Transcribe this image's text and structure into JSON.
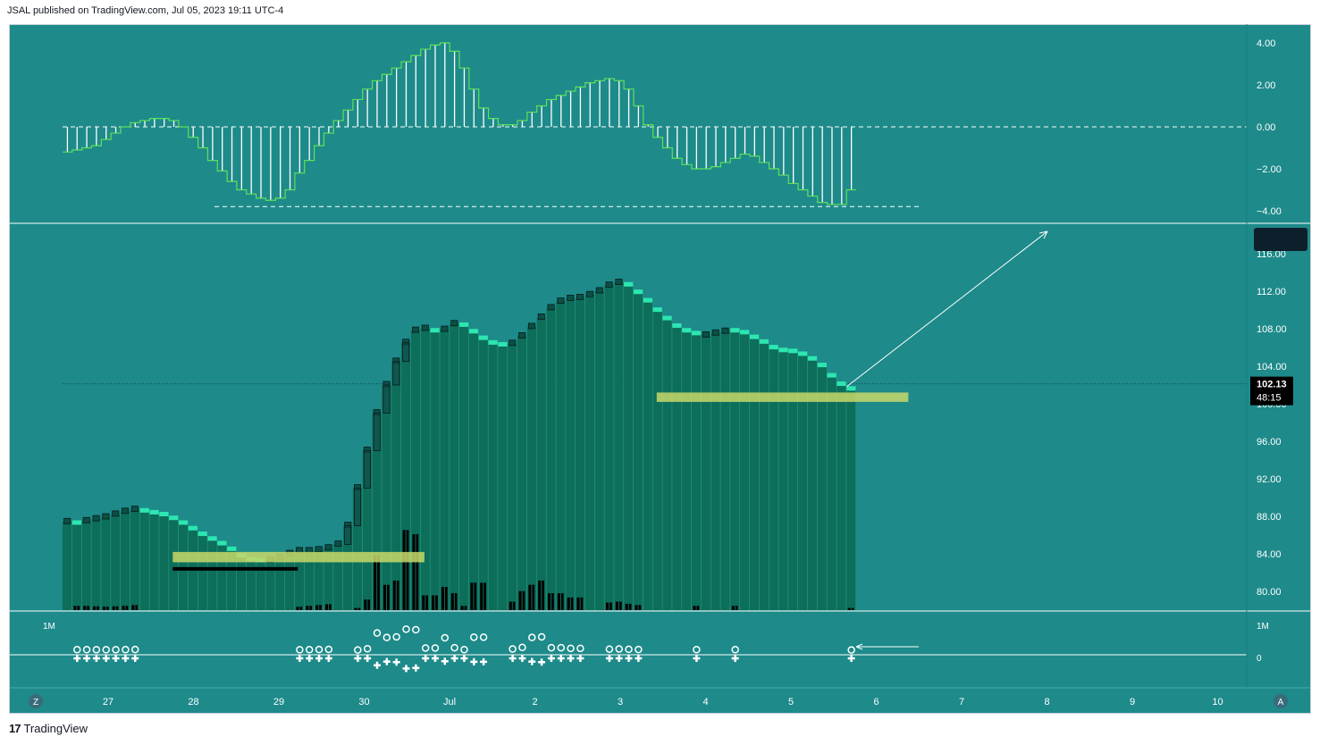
{
  "header": {
    "published_text": "JSAL published on TradingView.com, Jul 05, 2023 19:11 UTC-4"
  },
  "footer": {
    "logo_glyph": "17",
    "brand": "TradingView"
  },
  "colors": {
    "background": "#1e8a8a",
    "bar": "#0d6e5a",
    "highlight": "#2de6b0",
    "zone": "#c8d86a",
    "text": "#ffffff"
  },
  "price_badge": {
    "price": "102.13",
    "countdown": "48:15"
  },
  "volume_scale": {
    "top_label": "1M",
    "zero_label": "0"
  },
  "corner_buttons": {
    "left": "Z",
    "right": "A"
  },
  "chart_data": [
    {
      "type": "line",
      "panel": "oscillator",
      "y_ticks": [
        "4.00",
        "2.00",
        "0.00",
        "−2.00",
        "−4.00"
      ],
      "ylim": [
        -4.0,
        4.6
      ],
      "histogram": [
        -1.2,
        -1.1,
        -1.0,
        -0.9,
        -0.6,
        -0.3,
        0.0,
        0.2,
        0.3,
        0.4,
        0.4,
        0.3,
        0.0,
        -0.5,
        -1.0,
        -1.6,
        -2.1,
        -2.6,
        -3.0,
        -3.2,
        -3.4,
        -3.5,
        -3.4,
        -3.0,
        -2.2,
        -1.6,
        -0.9,
        -0.3,
        0.3,
        0.8,
        1.3,
        1.8,
        2.2,
        2.5,
        2.8,
        3.1,
        3.4,
        3.7,
        3.9,
        4.0,
        3.6,
        2.8,
        1.8,
        0.9,
        0.4,
        0.1,
        0.1,
        0.3,
        0.7,
        1.0,
        1.3,
        1.5,
        1.7,
        1.9,
        2.1,
        2.2,
        2.3,
        2.2,
        1.8,
        1.0,
        0.1,
        -0.5,
        -1.0,
        -1.5,
        -1.8,
        -2.0,
        -2.0,
        -1.9,
        -1.7,
        -1.5,
        -1.3,
        -1.4,
        -1.7,
        -2.0,
        -2.3,
        -2.7,
        -3.0,
        -3.3,
        -3.6,
        -3.7,
        -3.7,
        -3.0
      ],
      "dashed_levels": [
        0.0,
        -3.8
      ]
    },
    {
      "type": "bar",
      "panel": "price",
      "y_ticks": [
        "116.00",
        "112.00",
        "108.00",
        "104.00",
        "100.00",
        "96.00",
        "92.00",
        "88.00",
        "84.00",
        "80.00"
      ],
      "ylim": [
        78.0,
        119.5
      ],
      "x_ticks": [
        "27",
        "28",
        "29",
        "30",
        "Jul",
        "2",
        "3",
        "4",
        "5",
        "6",
        "7",
        "8",
        "9",
        "10"
      ],
      "close": [
        87.4,
        87.1,
        87.5,
        87.7,
        87.9,
        88.2,
        88.5,
        88.7,
        88.4,
        88.2,
        88.0,
        87.6,
        87.1,
        86.5,
        85.9,
        85.4,
        84.9,
        84.3,
        83.6,
        83.2,
        83.1,
        83.3,
        83.6,
        84.0,
        84.3,
        84.3,
        84.4,
        84.6,
        85.0,
        87.0,
        91.0,
        95.0,
        99.0,
        102.0,
        104.5,
        106.5,
        107.8,
        108.0,
        107.6,
        107.9,
        108.5,
        108.2,
        107.5,
        106.8,
        106.3,
        106.1,
        106.4,
        107.2,
        108.2,
        109.2,
        110.2,
        110.9,
        111.2,
        111.3,
        111.6,
        112.0,
        112.6,
        112.9,
        112.5,
        111.7,
        110.8,
        109.8,
        108.9,
        108.1,
        107.6,
        107.3,
        107.3,
        107.5,
        107.7,
        107.6,
        107.4,
        106.9,
        106.4,
        105.8,
        105.5,
        105.4,
        105.1,
        104.6,
        103.9,
        102.8,
        101.9,
        101.4
      ],
      "volume": [
        0,
        0.1,
        0.1,
        0.09,
        0.08,
        0.09,
        0.1,
        0.12,
        0,
        0,
        0,
        0,
        0,
        0,
        0,
        0,
        0,
        0,
        0,
        0,
        0,
        0,
        0,
        0,
        0.08,
        0.1,
        0.12,
        0.14,
        0,
        0,
        0.05,
        0.25,
        1.3,
        0.6,
        0.7,
        1.9,
        1.8,
        0.35,
        0.35,
        0.55,
        0.4,
        0.1,
        0.65,
        0.65,
        0,
        0,
        0.2,
        0.45,
        0.6,
        0.7,
        0.4,
        0.4,
        0.3,
        0.3,
        0,
        0,
        0.18,
        0.2,
        0.15,
        0.12,
        0,
        0,
        0,
        0,
        0,
        0.1,
        0,
        0,
        0,
        0.1,
        0,
        0,
        0,
        0,
        0,
        0,
        0,
        0,
        0,
        0,
        0,
        0.05
      ],
      "volume_ylim": [
        0,
        2.5
      ],
      "current_price": 102.13,
      "zones": [
        {
          "start": 10,
          "end": 36,
          "low": 83.1,
          "high": 84.2
        },
        {
          "start": 60,
          "end": 86,
          "low": 100.2,
          "high": 101.2
        }
      ],
      "support_line": {
        "start": 10,
        "end": 22,
        "price": 82.4
      },
      "dotted_level": 102.13
    }
  ]
}
